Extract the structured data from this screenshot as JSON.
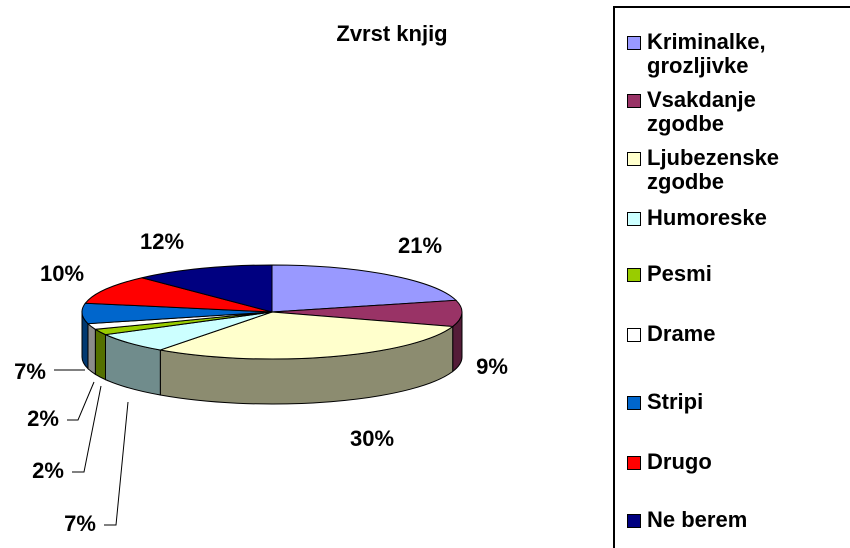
{
  "chart_data": {
    "type": "pie3d",
    "title": "Zvrst knjig",
    "categories": [
      "Kriminalke, grozljivke",
      "Vsakdanje zgodbe",
      "Ljubezenske zgodbe",
      "Humoreske",
      "Pesmi",
      "Drame",
      "Stripi",
      "Drugo",
      "Ne berem"
    ],
    "values": [
      21,
      9,
      30,
      7,
      2,
      2,
      7,
      10,
      12
    ],
    "value_labels": [
      "21%",
      "9%",
      "30%",
      "7%",
      "2%",
      "2%",
      "7%",
      "10%",
      "12%"
    ],
    "colors": [
      "#9999ff",
      "#993366",
      "#ffffcc",
      "#ccffff",
      "#99cc00",
      "#ffffff",
      "#0066cc",
      "#ff0000",
      "#000080"
    ],
    "legend": "right"
  }
}
